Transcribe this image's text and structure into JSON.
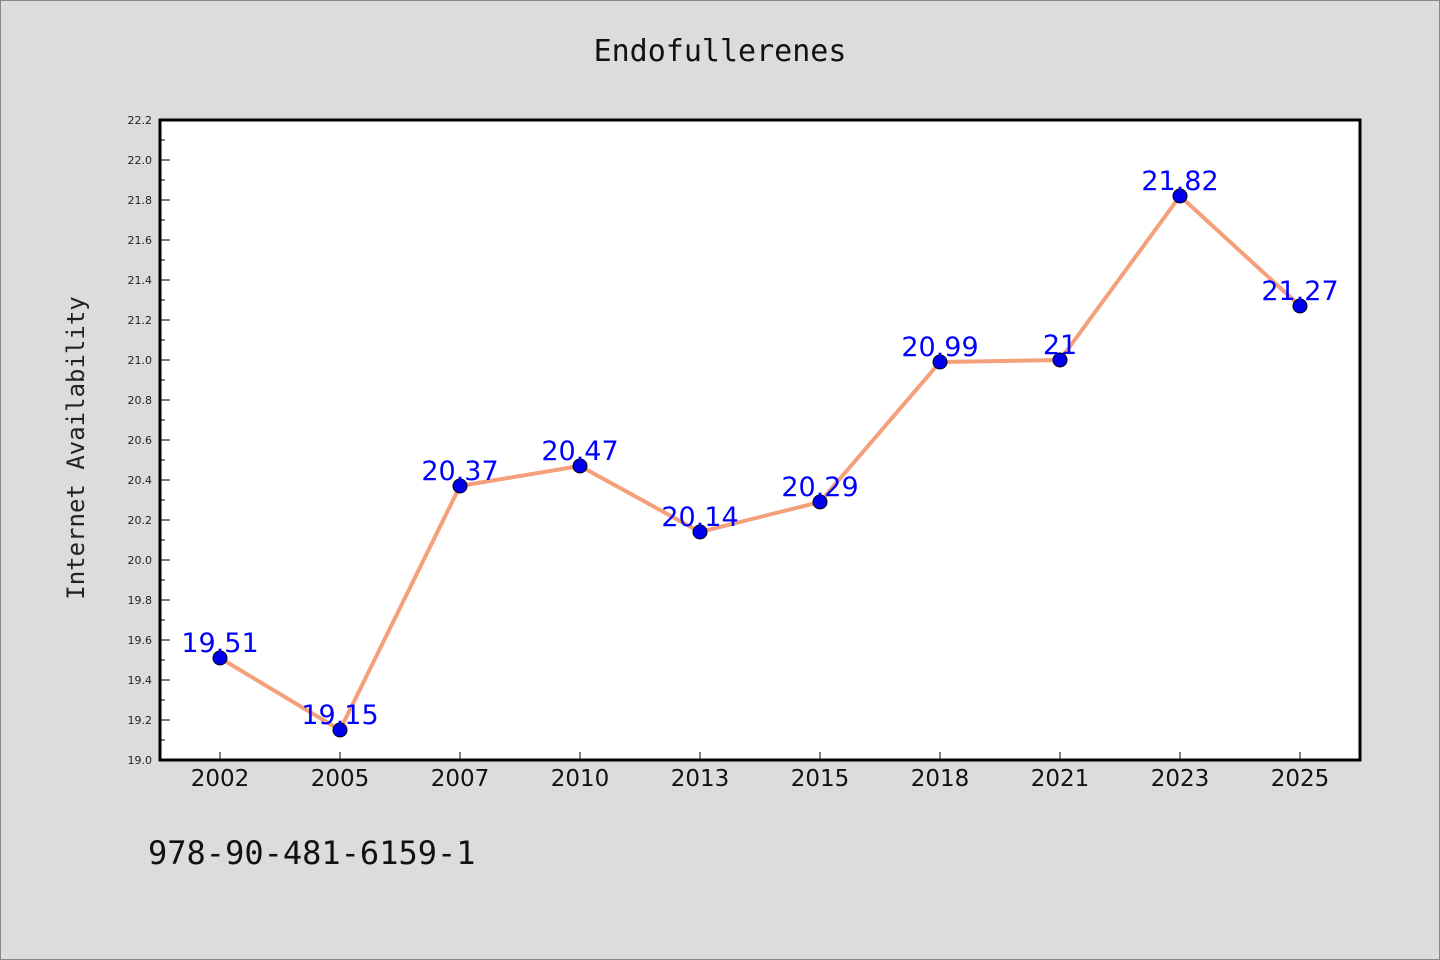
{
  "chart_data": {
    "type": "line",
    "title": "Endofullerenes",
    "xlabel": "",
    "ylabel": "Internet Availability",
    "categories": [
      "2002",
      "2005",
      "2007",
      "2010",
      "2013",
      "2015",
      "2018",
      "2021",
      "2023",
      "2025"
    ],
    "series": [
      {
        "values": [
          19.51,
          19.15,
          20.37,
          20.47,
          20.14,
          20.29,
          20.99,
          21,
          21.82,
          21.27
        ],
        "labels": [
          "19.51",
          "19.15",
          "20.37",
          "20.47",
          "20.14",
          "20.29",
          "20.99",
          "21",
          "21.82",
          "21.27"
        ],
        "line_color": "#f4a07a",
        "marker_color": "#0000ee",
        "label_color": "#0000ff"
      }
    ],
    "ylim": [
      19.0,
      22.2
    ],
    "yticks": [
      "19.0",
      "19.2",
      "19.4",
      "19.6",
      "19.8",
      "20.0",
      "20.2",
      "20.4",
      "20.6",
      "20.8",
      "21.0",
      "21.2",
      "21.4",
      "21.6",
      "21.8",
      "22.0",
      "22.2"
    ],
    "grid": false,
    "legend": "none"
  },
  "footer_text": "978-90-481-6159-1",
  "colors": {
    "background": "#dcdcdc",
    "plot_area": "#ffffff"
  }
}
